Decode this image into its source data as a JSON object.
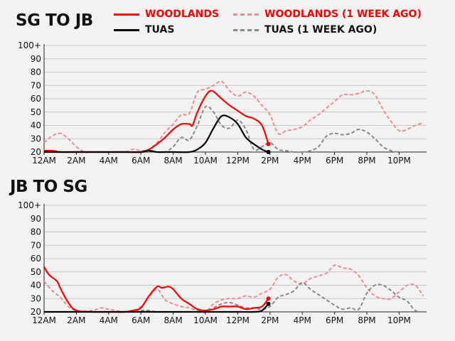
{
  "legend": {
    "woodlands": "WOODLANDS",
    "woodlands_ago": "WOODLANDS (1 WEEK AGO)",
    "tuas": "TUAS",
    "tuas_ago": "TUAS (1 WEEK AGO)"
  },
  "colors": {
    "woodlands": "#ff0000",
    "woodlands_ago": "#f08a8a",
    "tuas": "#000000",
    "tuas_ago": "#888888",
    "grid": "#c8c8c8"
  },
  "chart_data": [
    {
      "type": "line",
      "title": "SG TO JB",
      "x_ticks": [
        "12AM",
        "2AM",
        "4AM",
        "6AM",
        "8AM",
        "10AM",
        "12PM",
        "2PM",
        "4PM",
        "6PM",
        "8PM",
        "10PM"
      ],
      "y_ticks": [
        "20",
        "30",
        "40",
        "50",
        "60",
        "70",
        "80",
        "90",
        "100+"
      ],
      "xlim": [
        0,
        23.7
      ],
      "ylim": [
        20,
        100
      ],
      "series": [
        {
          "name": "WOODLANDS (1 WEEK AGO)",
          "style": "dashed",
          "color": "#f08a8a",
          "x": [
            0,
            0.5,
            1,
            1.5,
            2,
            2.5,
            3,
            4,
            5,
            5.5,
            6,
            6.5,
            7,
            7.5,
            8,
            8.5,
            9,
            9.5,
            10,
            10.5,
            11,
            11.5,
            12,
            12.5,
            13,
            13.5,
            14,
            14.5,
            15,
            15.5,
            16,
            16.5,
            17,
            17.5,
            18,
            18.5,
            19,
            19.5,
            20,
            20.5,
            21,
            21.5,
            22,
            22.5,
            23,
            23.5
          ],
          "y": [
            27,
            32,
            34,
            30,
            24,
            20,
            20,
            20,
            20,
            22,
            21,
            22,
            27,
            35,
            41,
            48,
            49,
            65,
            67,
            70,
            73,
            66,
            62,
            65,
            62,
            55,
            48,
            34,
            36,
            37,
            39,
            44,
            48,
            53,
            58,
            63,
            63,
            64,
            66,
            63,
            52,
            43,
            36,
            37,
            40,
            42
          ]
        },
        {
          "name": "TUAS (1 WEEK AGO)",
          "style": "dashed",
          "color": "#888888",
          "x": [
            0,
            1,
            2,
            3,
            4,
            5,
            6,
            7,
            7.5,
            8,
            8.5,
            9,
            9.5,
            10,
            10.5,
            11,
            11.5,
            12,
            12.5,
            13,
            13.5,
            14,
            14.5,
            15,
            15.5,
            16,
            16.5,
            17,
            17.5,
            18,
            18.5,
            19,
            19.5,
            20,
            20.5,
            21,
            21.5,
            22,
            22.5,
            23,
            23.5
          ],
          "y": [
            20,
            20,
            20,
            20,
            20,
            20,
            20,
            20,
            20,
            24,
            31,
            29,
            40,
            54,
            50,
            40,
            38,
            44,
            37,
            22,
            24,
            27,
            22,
            21,
            20,
            20,
            21,
            24,
            32,
            34,
            33,
            34,
            37,
            35,
            30,
            24,
            21,
            20,
            20,
            20,
            20
          ]
        },
        {
          "name": "WOODLANDS",
          "style": "solid",
          "color": "#ff0000",
          "x": [
            0,
            0.5,
            1,
            2,
            3,
            4,
            5,
            6,
            6.5,
            7,
            7.5,
            8,
            8.5,
            9,
            9.2,
            9.5,
            10,
            10.4,
            11,
            11.5,
            12,
            12.5,
            13,
            13.5,
            13.9
          ],
          "y": [
            21,
            21,
            20,
            20,
            20,
            20,
            20,
            20,
            22,
            26,
            31,
            37,
            41,
            41,
            40,
            50,
            62,
            66,
            60,
            55,
            51,
            47,
            45,
            40,
            26
          ]
        },
        {
          "name": "TUAS",
          "style": "solid",
          "color": "#000000",
          "x": [
            0,
            1,
            2,
            3,
            4,
            5,
            6,
            6.5,
            7,
            7.5,
            8,
            9,
            9.5,
            10,
            10.5,
            11,
            11.5,
            12,
            12.5,
            13,
            13.5,
            13.9
          ],
          "y": [
            20,
            20,
            20,
            20,
            20,
            20,
            20,
            21,
            20,
            20,
            20,
            20,
            22,
            27,
            38,
            47,
            46,
            41,
            31,
            26,
            22,
            20
          ]
        }
      ]
    },
    {
      "type": "line",
      "title": "JB TO SG",
      "x_ticks": [
        "12AM",
        "2AM",
        "4AM",
        "6AM",
        "8AM",
        "10AM",
        "12PM",
        "2PM",
        "4PM",
        "6PM",
        "8PM",
        "10PM"
      ],
      "y_ticks": [
        "20",
        "30",
        "40",
        "50",
        "60",
        "70",
        "80",
        "90",
        "100+"
      ],
      "xlim": [
        0,
        23.7
      ],
      "ylim": [
        20,
        100
      ],
      "series": [
        {
          "name": "WOODLANDS (1 WEEK AGO)",
          "style": "dashed",
          "color": "#f08a8a",
          "x": [
            0,
            0.5,
            1,
            1.5,
            2,
            3,
            3.5,
            4,
            5,
            5.5,
            6,
            6.5,
            7,
            7.5,
            8,
            8.5,
            9,
            9.5,
            10,
            10.5,
            11,
            11.5,
            12,
            12.5,
            13,
            13.5,
            14,
            14.5,
            15,
            15.5,
            16,
            16.5,
            17,
            17.5,
            18,
            18.5,
            19,
            19.5,
            20,
            20.5,
            21,
            21.5,
            22,
            22.5,
            23,
            23.5
          ],
          "y": [
            43,
            36,
            31,
            24,
            21,
            21,
            23,
            22,
            20,
            21,
            24,
            31,
            37,
            29,
            26,
            24,
            23,
            21,
            20,
            26,
            29,
            30,
            30,
            32,
            31,
            34,
            37,
            46,
            48,
            43,
            41,
            45,
            47,
            49,
            55,
            53,
            52,
            47,
            38,
            32,
            30,
            30,
            35,
            40,
            40,
            32
          ]
        },
        {
          "name": "TUAS (1 WEEK AGO)",
          "style": "dashed",
          "color": "#888888",
          "x": [
            0,
            1,
            2,
            3,
            4,
            5,
            6,
            6.5,
            7,
            8,
            9,
            9.5,
            10,
            10.5,
            11,
            11.5,
            12,
            12.5,
            13,
            13.5,
            14,
            14.5,
            15,
            15.5,
            16,
            16.5,
            17,
            17.5,
            18,
            18.5,
            19,
            19.5,
            20,
            20.5,
            21,
            21.5,
            22,
            22.5,
            23,
            23.5
          ],
          "y": [
            20,
            20,
            20,
            20,
            20,
            20,
            21,
            21,
            20,
            20,
            20,
            20,
            20,
            23,
            26,
            27,
            25,
            23,
            23,
            22,
            24,
            31,
            33,
            36,
            42,
            37,
            33,
            29,
            25,
            22,
            23,
            22,
            34,
            40,
            40,
            36,
            31,
            28,
            21,
            20
          ]
        },
        {
          "name": "WOODLANDS",
          "style": "solid",
          "color": "#ff0000",
          "x": [
            0,
            0.3,
            0.8,
            1,
            1.5,
            2,
            3,
            4,
            5,
            5.5,
            6,
            6.5,
            7,
            7.3,
            7.7,
            8,
            8.5,
            9,
            9.5,
            10,
            10.5,
            11,
            11.5,
            12,
            12.5,
            13,
            13.5,
            13.9
          ],
          "y": [
            54,
            48,
            43,
            38,
            27,
            21,
            20,
            20,
            20,
            21,
            23,
            32,
            39,
            38,
            39,
            37,
            30,
            26,
            22,
            21,
            22,
            24,
            24,
            24,
            22,
            23,
            24,
            30
          ]
        },
        {
          "name": "TUAS",
          "style": "solid",
          "color": "#000000",
          "x": [
            0,
            1,
            2,
            3,
            4,
            5,
            6,
            7,
            8,
            9,
            10,
            11,
            12,
            13,
            13.5,
            13.9
          ],
          "y": [
            20,
            20,
            20,
            20,
            20,
            20,
            20,
            20,
            20,
            20,
            20,
            20,
            20,
            20,
            21,
            26
          ]
        }
      ]
    }
  ]
}
